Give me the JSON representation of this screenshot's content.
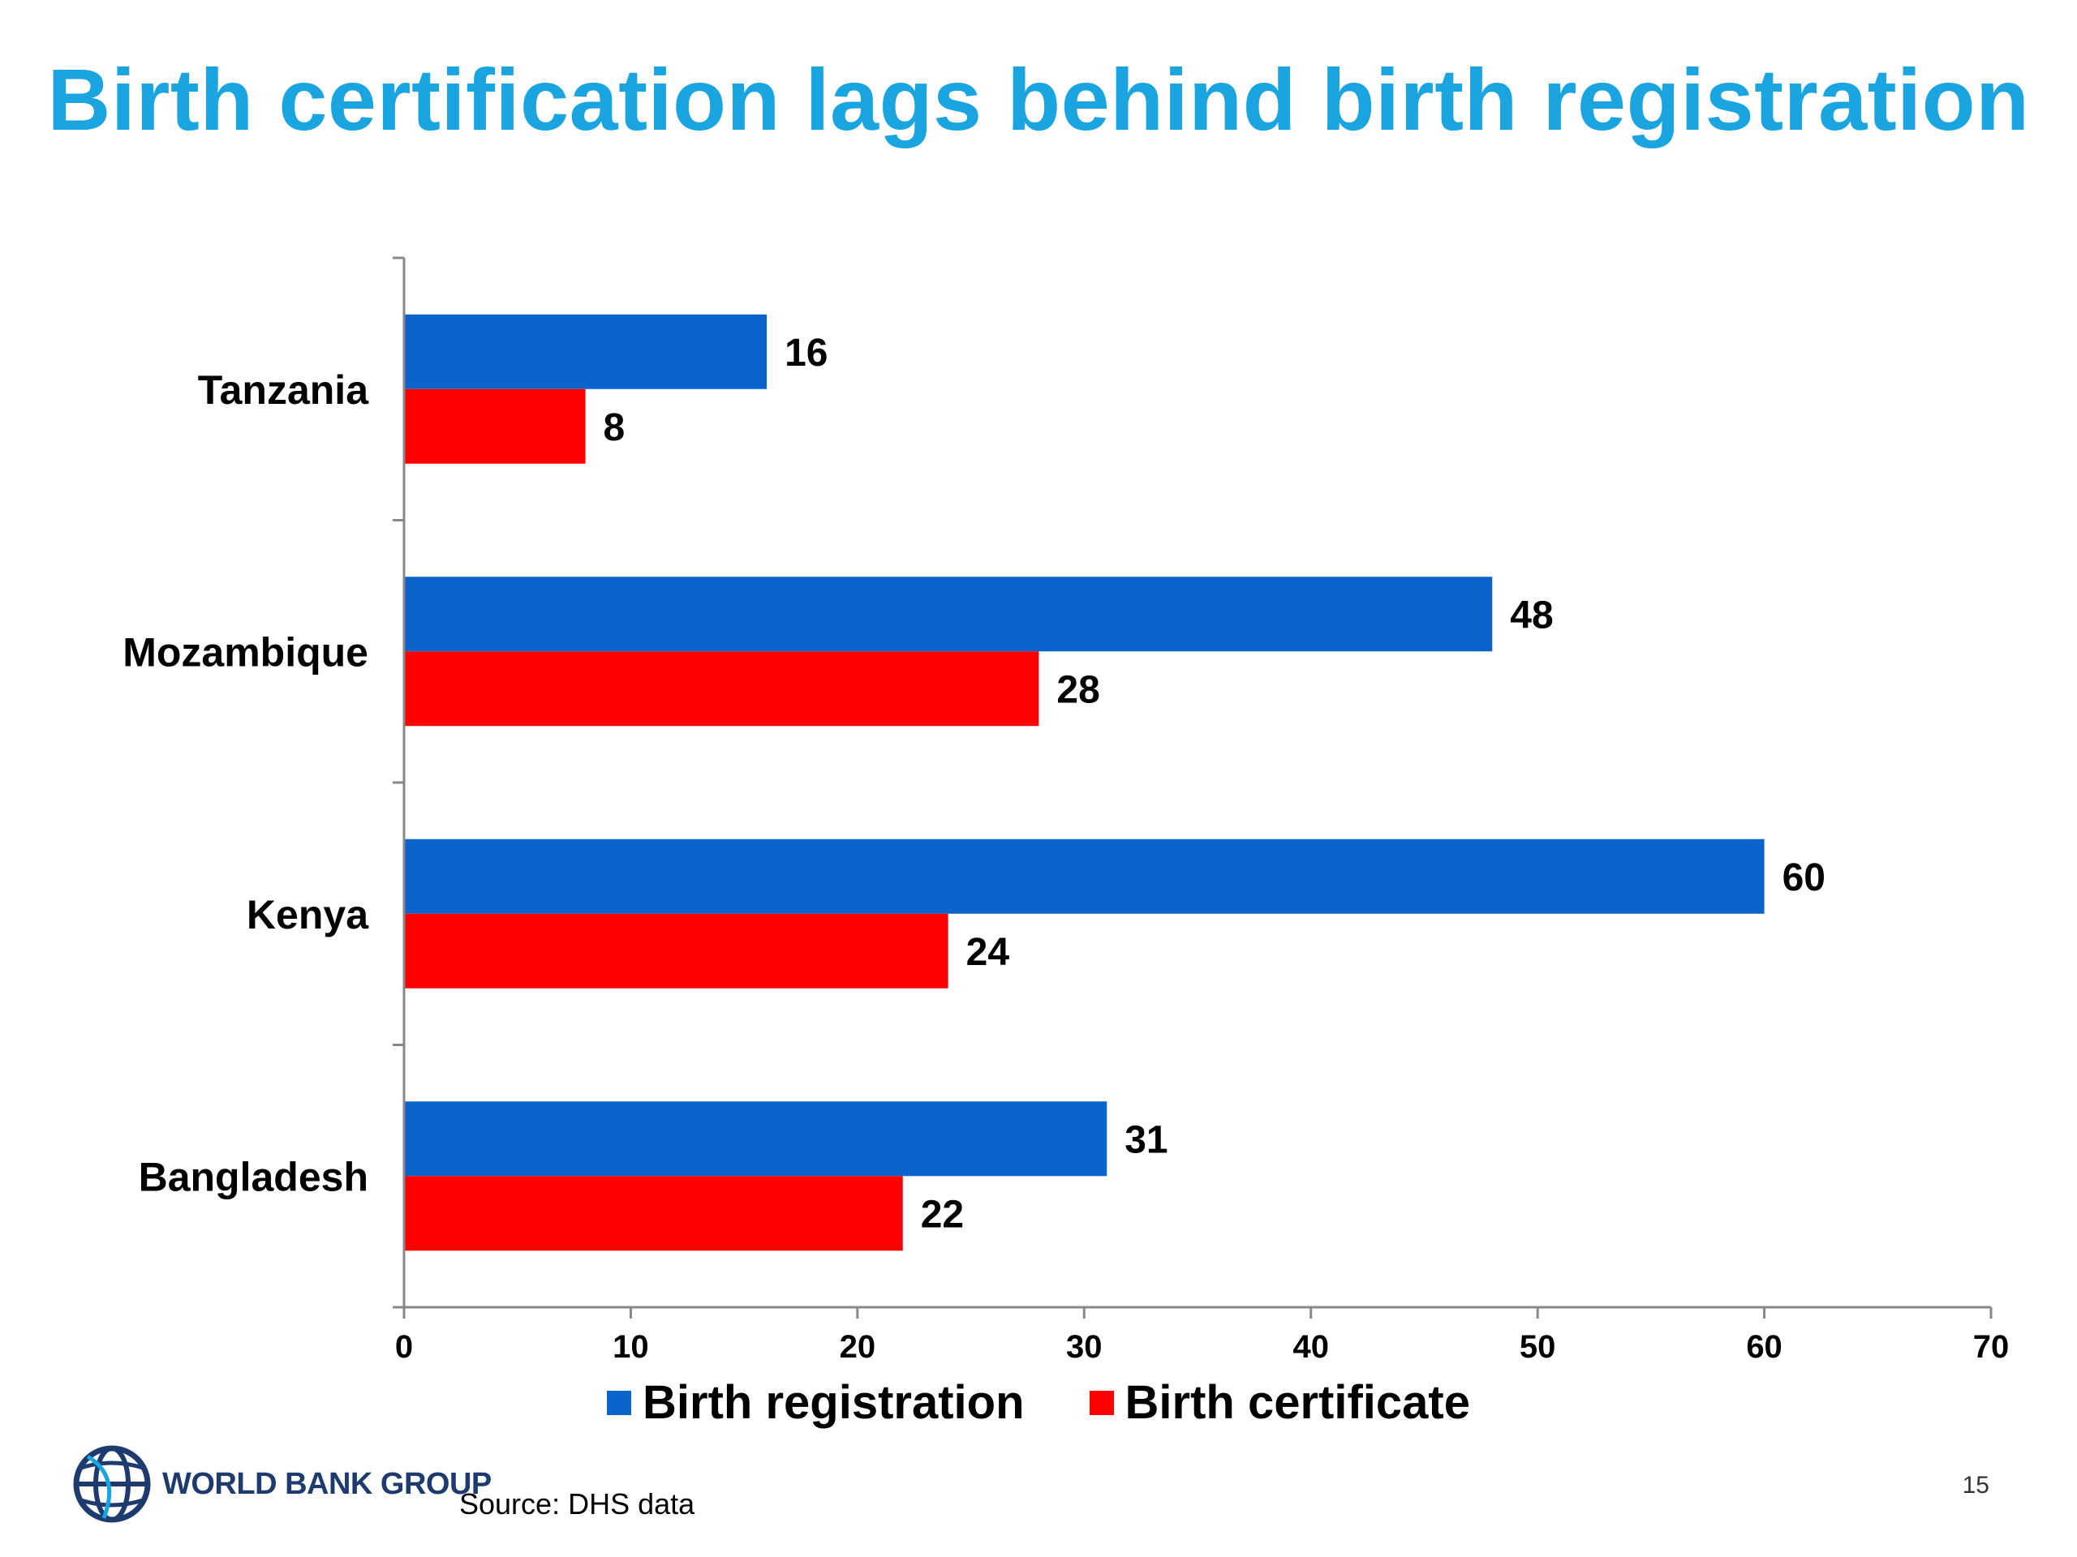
{
  "slide": {
    "title": "Birth certification lags behind birth registration",
    "source": "Source: DHS data",
    "page_number": "15",
    "logo_text": "WORLD BANK GROUP"
  },
  "colors": {
    "title": "#1aa4e0",
    "series_registration": "#0a64cc",
    "series_certificate": "#ff0000"
  },
  "chart_data": {
    "type": "bar",
    "orientation": "horizontal",
    "categories": [
      "Tanzania",
      "Mozambique",
      "Kenya",
      "Bangladesh"
    ],
    "series": [
      {
        "name": "Birth registration",
        "values": [
          16,
          48,
          60,
          31
        ],
        "color": "#0a64cc"
      },
      {
        "name": "Birth certificate",
        "values": [
          8,
          28,
          24,
          22
        ],
        "color": "#ff0000"
      }
    ],
    "xlim": [
      0,
      70
    ],
    "x_ticks": [
      0,
      10,
      20,
      30,
      40,
      50,
      60,
      70
    ],
    "xlabel": "",
    "ylabel": "",
    "grid": false,
    "legend_position": "bottom",
    "data_labels": true
  }
}
